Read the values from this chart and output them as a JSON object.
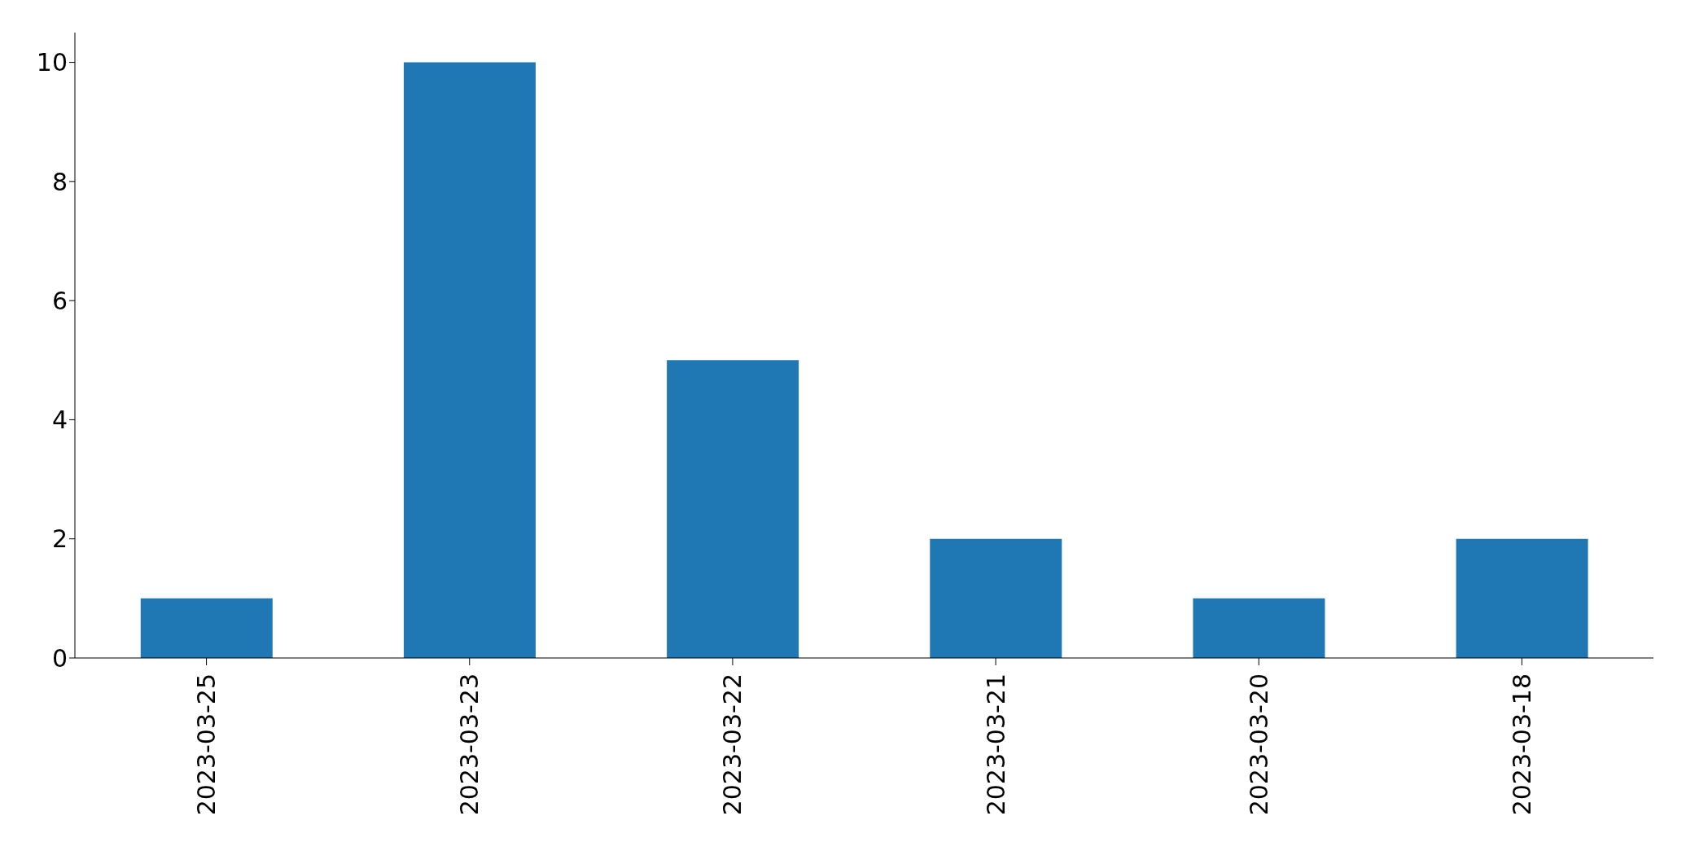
{
  "chart_data": {
    "type": "bar",
    "categories": [
      "2023-03-25",
      "2023-03-23",
      "2023-03-22",
      "2023-03-21",
      "2023-03-20",
      "2023-03-18"
    ],
    "values": [
      1,
      10,
      5,
      2,
      1,
      2
    ],
    "color": "#1f77b4",
    "ylim": [
      0,
      10.5
    ],
    "yticks": [
      0,
      2,
      4,
      6,
      8,
      10
    ],
    "grid": false,
    "legend": false
  }
}
